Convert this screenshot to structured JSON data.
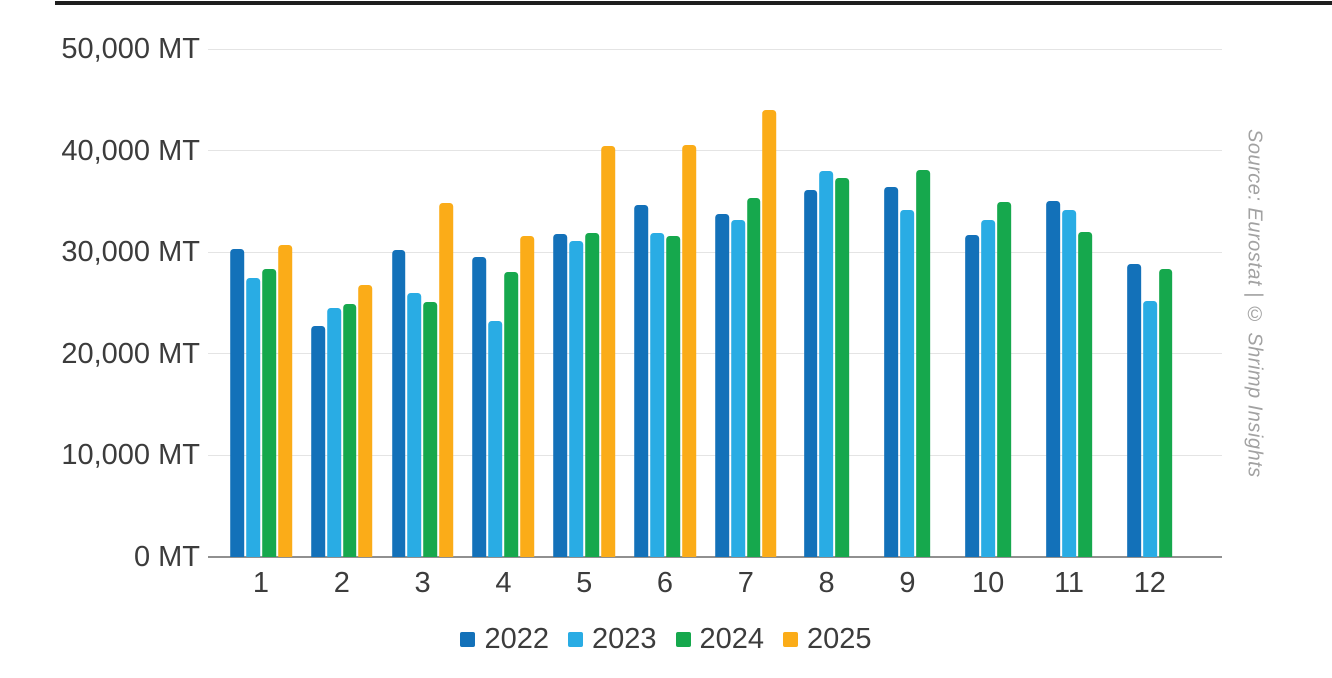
{
  "source_note": "Source: Eurostat | © Shrimp Insights",
  "colors": {
    "top_rule": "#1e1e1e",
    "gridline": "#e4e4e4",
    "axis_line": "#909090",
    "tick_text": "#3c3c3c",
    "legend_text": "#3c3c3c",
    "source_text": "#a2a2a2"
  },
  "chart_data": {
    "type": "bar",
    "title": "",
    "xlabel": "",
    "ylabel": "",
    "unit": "MT",
    "grid": true,
    "legend_position": "bottom",
    "ylim": [
      0,
      50000
    ],
    "y_tick_interval": 10000,
    "y_tick_labels": [
      "0 MT",
      "10,000 MT",
      "20,000 MT",
      "30,000 MT",
      "40,000 MT",
      "50,000 MT"
    ],
    "categories": [
      "1",
      "2",
      "3",
      "4",
      "5",
      "6",
      "7",
      "8",
      "9",
      "10",
      "11",
      "12"
    ],
    "series": [
      {
        "name": "2022",
        "color": "#1371b9",
        "values": [
          30300,
          22700,
          30200,
          29500,
          31800,
          34600,
          33800,
          36100,
          36400,
          31700,
          35000,
          28800
        ]
      },
      {
        "name": "2023",
        "color": "#29ace4",
        "values": [
          27500,
          24500,
          26000,
          23200,
          31100,
          31900,
          33200,
          38000,
          34200,
          33200,
          34200,
          25200
        ]
      },
      {
        "name": "2024",
        "color": "#16a84d",
        "values": [
          28300,
          24900,
          25100,
          28100,
          31900,
          31600,
          35300,
          37300,
          38100,
          34900,
          32000,
          28300
        ]
      },
      {
        "name": "2025",
        "color": "#fbac18",
        "values": [
          30700,
          26800,
          34800,
          31600,
          40500,
          40600,
          44000,
          null,
          null,
          null,
          null,
          null
        ]
      }
    ]
  }
}
